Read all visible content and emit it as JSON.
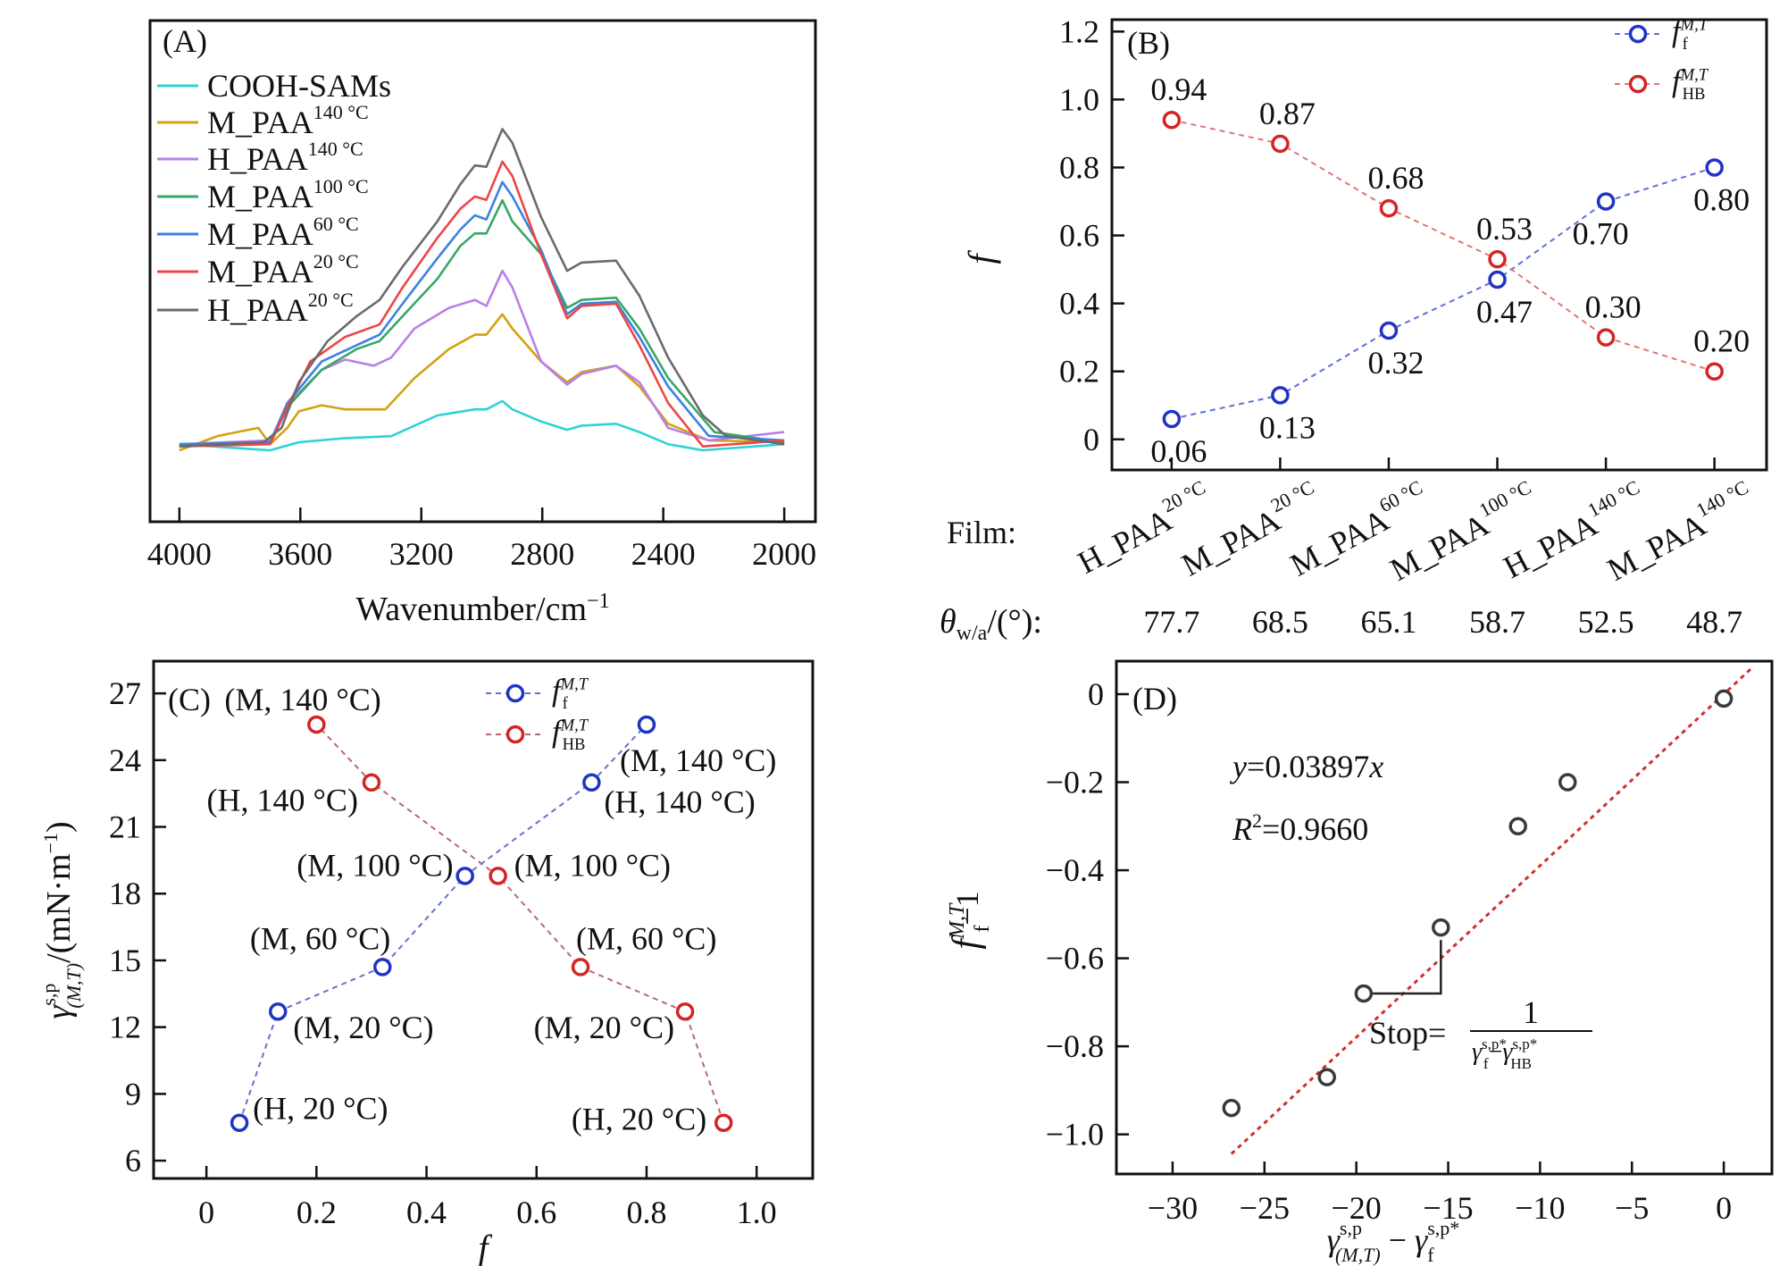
{
  "chart_data": [
    {
      "panel": "(A)",
      "type": "line",
      "xlabel": "Wavenumber/cm",
      "xlabel_sup": "−1",
      "xlim": [
        4097,
        1897
      ],
      "ylim": [
        -0.23,
        1.34
      ],
      "xticks": [
        "4000",
        "3600",
        "3200",
        "2800",
        "2400",
        "2000"
      ],
      "xtick_values": [
        4000,
        3600,
        3200,
        2800,
        2400,
        2000
      ],
      "legend_position": "top-left",
      "series": [
        {
          "name": "COOH-SAMs",
          "sup": "",
          "color": "#2ed3d6",
          "points": [
            [
              4000,
              0.013
            ],
            [
              3700,
              -0.006
            ],
            [
              3605,
              0.019
            ],
            [
              3452,
              0.032
            ],
            [
              3300,
              0.038
            ],
            [
              3147,
              0.103
            ],
            [
              3023,
              0.122
            ],
            [
              2985,
              0.122
            ],
            [
              2932,
              0.148
            ],
            [
              2899,
              0.122
            ],
            [
              2804,
              0.084
            ],
            [
              2718,
              0.058
            ],
            [
              2670,
              0.071
            ],
            [
              2556,
              0.077
            ],
            [
              2479,
              0.051
            ],
            [
              2384,
              0.013
            ],
            [
              2269,
              -0.006
            ],
            [
              2000,
              0.013
            ]
          ]
        },
        {
          "name": "M_PAA",
          "sup": "140 °C",
          "color": "#d4a20f",
          "points": [
            [
              4000,
              -0.006
            ],
            [
              3872,
              0.039
            ],
            [
              3739,
              0.064
            ],
            [
              3700,
              0.013
            ],
            [
              3643,
              0.064
            ],
            [
              3605,
              0.116
            ],
            [
              3529,
              0.135
            ],
            [
              3452,
              0.122
            ],
            [
              3319,
              0.122
            ],
            [
              3223,
              0.22
            ],
            [
              3109,
              0.311
            ],
            [
              3023,
              0.356
            ],
            [
              2985,
              0.356
            ],
            [
              2932,
              0.42
            ],
            [
              2899,
              0.375
            ],
            [
              2804,
              0.272
            ],
            [
              2718,
              0.207
            ],
            [
              2670,
              0.239
            ],
            [
              2556,
              0.259
            ],
            [
              2479,
              0.194
            ],
            [
              2384,
              0.077
            ],
            [
              2250,
              0.025
            ],
            [
              2000,
              0.019
            ]
          ]
        },
        {
          "name": "H_PAA",
          "sup": "140 °C",
          "color": "#b880e8",
          "points": [
            [
              4000,
              0.013
            ],
            [
              3700,
              0.025
            ],
            [
              3624,
              0.155
            ],
            [
              3529,
              0.246
            ],
            [
              3452,
              0.278
            ],
            [
              3357,
              0.259
            ],
            [
              3300,
              0.284
            ],
            [
              3223,
              0.375
            ],
            [
              3109,
              0.44
            ],
            [
              3023,
              0.465
            ],
            [
              2985,
              0.446
            ],
            [
              2932,
              0.556
            ],
            [
              2899,
              0.504
            ],
            [
              2804,
              0.272
            ],
            [
              2718,
              0.2
            ],
            [
              2670,
              0.233
            ],
            [
              2556,
              0.259
            ],
            [
              2479,
              0.207
            ],
            [
              2384,
              0.064
            ],
            [
              2250,
              0.025
            ],
            [
              2000,
              0.051
            ]
          ]
        },
        {
          "name": "M_PAA",
          "sup": "100 °C",
          "color": "#38a865",
          "points": [
            [
              4000,
              0.013
            ],
            [
              3700,
              0.019
            ],
            [
              3643,
              0.129
            ],
            [
              3529,
              0.246
            ],
            [
              3414,
              0.311
            ],
            [
              3338,
              0.336
            ],
            [
              3262,
              0.414
            ],
            [
              3147,
              0.531
            ],
            [
              3071,
              0.634
            ],
            [
              3023,
              0.673
            ],
            [
              2985,
              0.673
            ],
            [
              2932,
              0.777
            ],
            [
              2899,
              0.711
            ],
            [
              2804,
              0.608
            ],
            [
              2718,
              0.44
            ],
            [
              2670,
              0.465
            ],
            [
              2556,
              0.472
            ],
            [
              2479,
              0.375
            ],
            [
              2384,
              0.22
            ],
            [
              2231,
              0.051
            ],
            [
              2000,
              0.019
            ]
          ]
        },
        {
          "name": "M_PAA",
          "sup": "60 °C",
          "color": "#3b82e0",
          "points": [
            [
              4000,
              0.013
            ],
            [
              3700,
              0.019
            ],
            [
              3643,
              0.142
            ],
            [
              3529,
              0.272
            ],
            [
              3414,
              0.323
            ],
            [
              3338,
              0.356
            ],
            [
              3262,
              0.453
            ],
            [
              3147,
              0.595
            ],
            [
              3071,
              0.685
            ],
            [
              3023,
              0.73
            ],
            [
              2985,
              0.717
            ],
            [
              2932,
              0.834
            ],
            [
              2899,
              0.789
            ],
            [
              2804,
              0.621
            ],
            [
              2718,
              0.42
            ],
            [
              2670,
              0.453
            ],
            [
              2556,
              0.459
            ],
            [
              2479,
              0.349
            ],
            [
              2384,
              0.194
            ],
            [
              2250,
              0.039
            ],
            [
              2000,
              0.025
            ]
          ]
        },
        {
          "name": "M_PAA",
          "sup": "20 °C",
          "color": "#ee4646",
          "points": [
            [
              4000,
              0.006
            ],
            [
              3700,
              0.013
            ],
            [
              3643,
              0.129
            ],
            [
              3567,
              0.272
            ],
            [
              3452,
              0.349
            ],
            [
              3338,
              0.388
            ],
            [
              3262,
              0.504
            ],
            [
              3147,
              0.659
            ],
            [
              3071,
              0.75
            ],
            [
              3023,
              0.789
            ],
            [
              2985,
              0.778
            ],
            [
              2932,
              0.898
            ],
            [
              2899,
              0.853
            ],
            [
              2804,
              0.608
            ],
            [
              2718,
              0.407
            ],
            [
              2670,
              0.446
            ],
            [
              2556,
              0.453
            ],
            [
              2479,
              0.323
            ],
            [
              2384,
              0.142
            ],
            [
              2269,
              0.006
            ],
            [
              2000,
              0.025
            ]
          ]
        },
        {
          "name": "H_PAA",
          "sup": "20 °C",
          "color": "#6b6b6b",
          "points": [
            [
              4000,
              0.006
            ],
            [
              3720,
              0.02
            ],
            [
              3662,
              0.064
            ],
            [
              3605,
              0.207
            ],
            [
              3510,
              0.336
            ],
            [
              3414,
              0.414
            ],
            [
              3338,
              0.465
            ],
            [
              3262,
              0.569
            ],
            [
              3147,
              0.711
            ],
            [
              3071,
              0.827
            ],
            [
              3023,
              0.886
            ],
            [
              2985,
              0.882
            ],
            [
              2932,
              1.0
            ],
            [
              2899,
              0.957
            ],
            [
              2804,
              0.724
            ],
            [
              2718,
              0.556
            ],
            [
              2670,
              0.582
            ],
            [
              2556,
              0.588
            ],
            [
              2479,
              0.478
            ],
            [
              2384,
              0.284
            ],
            [
              2269,
              0.103
            ],
            [
              2193,
              0.039
            ],
            [
              2000,
              0.013
            ]
          ]
        }
      ]
    },
    {
      "panel": "(B)",
      "type": "line",
      "ylabel": "f",
      "ylim": [
        -0.09,
        1.235
      ],
      "xlim": [
        -0.55,
        5.48
      ],
      "yticks": [
        "0",
        "0.2",
        "0.4",
        "0.6",
        "0.8",
        "1.0",
        "1.2"
      ],
      "ytick_values": [
        0,
        0.2,
        0.4,
        0.6,
        0.8,
        1.0,
        1.2
      ],
      "categories": [
        {
          "name": "H_PAA",
          "sup": "20 °C"
        },
        {
          "name": "M_PAA",
          "sup": "20 °C"
        },
        {
          "name": "M_PAA",
          "sup": "60 °C"
        },
        {
          "name": "M_PAA",
          "sup": "100 °C"
        },
        {
          "name": "H_PAA",
          "sup": "140 °C"
        },
        {
          "name": "M_PAA",
          "sup": "140 °C"
        }
      ],
      "film_label": "Film:",
      "theta_label": {
        "main": "θ",
        "sub": "w/a",
        "rest": "/(°):"
      },
      "theta_values": [
        "77.7",
        "68.5",
        "65.1",
        "58.7",
        "52.5",
        "48.7"
      ],
      "legend_position": "top-right",
      "series": [
        {
          "main": "f",
          "sup": "M,T",
          "sub": "f",
          "color": "#1f33c4",
          "line_color": "#5d70da",
          "values": [
            0.06,
            0.13,
            0.32,
            0.47,
            0.7,
            0.8
          ],
          "labels": [
            "0.06",
            "0.13",
            "0.32",
            "0.47",
            "0.70",
            "0.80"
          ]
        },
        {
          "main": "f",
          "sup": "M,T",
          "sub": "HB",
          "color": "#d42424",
          "line_color": "#e57373",
          "values": [
            0.94,
            0.87,
            0.68,
            0.53,
            0.3,
            0.2
          ],
          "labels": [
            "0.94",
            "0.87",
            "0.68",
            "0.53",
            "0.30",
            "0.20"
          ]
        }
      ]
    },
    {
      "panel": "(C)",
      "type": "scatter",
      "xlabel": "f",
      "ylabel": {
        "main": "γ",
        "sup": "s,p",
        "sub": "(M,T)",
        "rest": "/(mN·m",
        "rest_sup": "−1",
        "close": ")"
      },
      "xlim": [
        -0.096,
        1.102
      ],
      "ylim": [
        5.2,
        28.45
      ],
      "xticks": [
        "0",
        "0.2",
        "0.4",
        "0.6",
        "0.8",
        "1.0"
      ],
      "xtick_values": [
        0,
        0.2,
        0.4,
        0.6,
        0.8,
        1.0
      ],
      "yticks": [
        "6",
        "9",
        "12",
        "15",
        "18",
        "21",
        "24",
        "27"
      ],
      "ytick_values": [
        6,
        9,
        12,
        15,
        18,
        21,
        24,
        27
      ],
      "legend_position": "top-center",
      "series": [
        {
          "main": "f",
          "sup": "M,T",
          "sub": "f",
          "color": "#1f33c4",
          "line_color": "#6672c8",
          "points": [
            [
              0.06,
              7.7
            ],
            [
              0.13,
              12.7
            ],
            [
              0.32,
              14.7
            ],
            [
              0.47,
              18.8
            ],
            [
              0.7,
              23.0
            ],
            [
              0.8,
              25.6
            ]
          ],
          "labels": [
            "(H, 20 °C)",
            "(M, 20 °C)",
            "(M, 60 °C)",
            "(M, 100 °C)",
            "(H, 140 °C)",
            "(M, 140 °C)"
          ]
        },
        {
          "main": "f",
          "sup": "M,T",
          "sub": "HB",
          "color": "#d42424",
          "line_color": "#b86a6a",
          "points": [
            [
              0.94,
              7.7
            ],
            [
              0.87,
              12.7
            ],
            [
              0.68,
              14.7
            ],
            [
              0.53,
              18.8
            ],
            [
              0.3,
              23.0
            ],
            [
              0.2,
              25.6
            ]
          ],
          "labels": [
            "(H, 20 °C)",
            "(M, 20 °C)",
            "(M, 60 °C)",
            "(M, 100 °C)",
            "(H, 140 °C)",
            "(M, 140 °C)"
          ]
        }
      ]
    },
    {
      "panel": "(D)",
      "type": "scatter",
      "xlabel": {
        "a": "γ",
        "a_sup": "s,p",
        "a_sub": "(M,T)",
        "minus": " − ",
        "b": "γ",
        "b_sup": "s,p*",
        "b_sub": "f"
      },
      "ylabel": {
        "main": "f",
        "sup": "M,T",
        "sub": "f",
        "rest": "−1"
      },
      "xlim": [
        -33.06,
        2.62
      ],
      "ylim": [
        -1.09,
        0.075
      ],
      "xticks": [
        "−30",
        "−25",
        "−20",
        "−15",
        "−10",
        "−5",
        "0"
      ],
      "xtick_values": [
        -30,
        -25,
        -20,
        -15,
        -10,
        -5,
        0
      ],
      "yticks": [
        "−1.0",
        "−0.8",
        "−0.6",
        "−0.4",
        "−0.2",
        "0"
      ],
      "ytick_values": [
        -1.0,
        -0.8,
        -0.6,
        -0.4,
        -0.2,
        0
      ],
      "points": [
        [
          -26.8,
          -0.94
        ],
        [
          -21.6,
          -0.87
        ],
        [
          -19.6,
          -0.68
        ],
        [
          -15.4,
          -0.53
        ],
        [
          -11.2,
          -0.3
        ],
        [
          -8.5,
          -0.2
        ],
        [
          0,
          -0.01
        ]
      ],
      "point_color": "#3a3a3a",
      "fit": {
        "slope": 0.03897,
        "x_range": [
          -26.8,
          1.6
        ],
        "color": "#d03030"
      },
      "equation": {
        "y": "y",
        "eq": "=0.03897",
        "x": "x"
      },
      "r2": {
        "r": "R",
        "sup": "2",
        "val": "=0.9660"
      },
      "slope_note": {
        "label": "Stop=",
        "num": "1",
        "g1": "γ",
        "g1_sup": "s,p*",
        "g1_sub": "f",
        "minus": "−",
        "g2": "γ",
        "g2_sup": "s,p*",
        "g2_sub": "HB"
      }
    }
  ]
}
